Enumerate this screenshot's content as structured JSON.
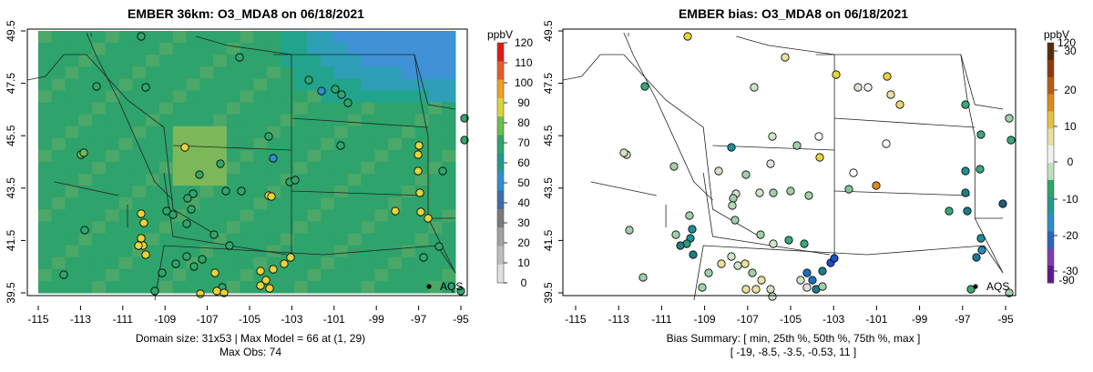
{
  "left_panel": {
    "title": "EMBER 36km: O3_MDA8 on 06/18/2021",
    "colorbar_unit": "ppbV",
    "colorbar_ticks": [
      "0",
      "10",
      "20",
      "30",
      "40",
      "50",
      "60",
      "70",
      "80",
      "90",
      "100",
      "110",
      "120"
    ],
    "caption_line1": "Domain size: 31x53 | Max Model = 66 at (1, 29)",
    "caption_line2": "Max Obs: 74",
    "aqs_label": "AQS"
  },
  "right_panel": {
    "title": "EMBER bias: O3_MDA8 on 06/18/2021",
    "colorbar_unit": "ppbV",
    "colorbar_ticks_top": "120",
    "colorbar_ticks": [
      "30",
      "20",
      "10",
      "0",
      "-10",
      "-20",
      "-30"
    ],
    "colorbar_ticks_bottom": "-90",
    "caption_line1": "Bias Summary: [ min, 25th %, 50th %, 75th %, max ]",
    "caption_line2": "[ -19,   -8.5,   -3.5,   -0.53,   11 ]",
    "aqs_label": "AQS"
  },
  "axes": {
    "x_ticks": [
      "-115",
      "-113",
      "-111",
      "-109",
      "-107",
      "-105",
      "-103",
      "-101",
      "-99",
      "-97",
      "-95"
    ],
    "y_ticks": [
      "39.5",
      "41.5",
      "43.5",
      "45.5",
      "47.5",
      "49.5"
    ]
  },
  "colors": {
    "field_green": "#27a36b",
    "field_blue": "#3c8fd4",
    "obs_yellow": "#e8d33a",
    "station_outline": "#000000"
  }
}
